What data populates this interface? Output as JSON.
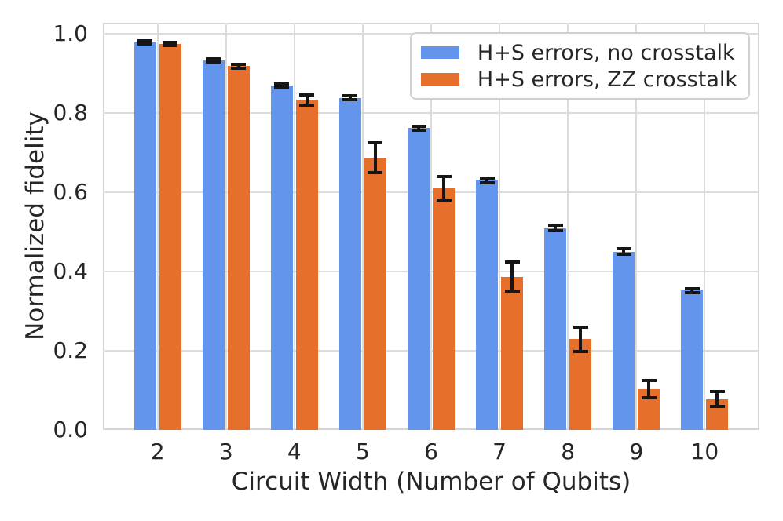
{
  "chart_data": {
    "type": "bar",
    "title": "",
    "xlabel": "Circuit Width (Number of Qubits)",
    "ylabel": "Normalized fidelity",
    "categories": [
      "2",
      "3",
      "4",
      "5",
      "6",
      "7",
      "8",
      "9",
      "10"
    ],
    "series": [
      {
        "name": "H+S errors, no crosstalk",
        "color": "#6495ED",
        "values": [
          0.978,
          0.932,
          0.869,
          0.838,
          0.762,
          0.63,
          0.51,
          0.45,
          0.352
        ],
        "errors": [
          0.004,
          0.004,
          0.005,
          0.005,
          0.005,
          0.006,
          0.006,
          0.007,
          0.005
        ]
      },
      {
        "name": "H+S errors, ZZ crosstalk",
        "color": "#E76F2C",
        "values": [
          0.974,
          0.919,
          0.833,
          0.687,
          0.61,
          0.387,
          0.229,
          0.103,
          0.078
        ],
        "errors": [
          0.004,
          0.005,
          0.013,
          0.037,
          0.03,
          0.037,
          0.03,
          0.022,
          0.019
        ]
      }
    ],
    "ylim": [
      0.0,
      1.028
    ],
    "yticks": [
      0.0,
      0.2,
      0.4,
      0.6,
      0.8,
      1.0
    ],
    "ytick_labels": [
      "0.0",
      "0.2",
      "0.4",
      "0.6",
      "0.8",
      "1.0"
    ],
    "grid": true,
    "legend_position": "upper right",
    "colors": {
      "grid": "#dcdcdc",
      "spine": "#d4d4d4",
      "error_bar": "#161616",
      "text": "#262626",
      "background": "#ffffff"
    }
  }
}
